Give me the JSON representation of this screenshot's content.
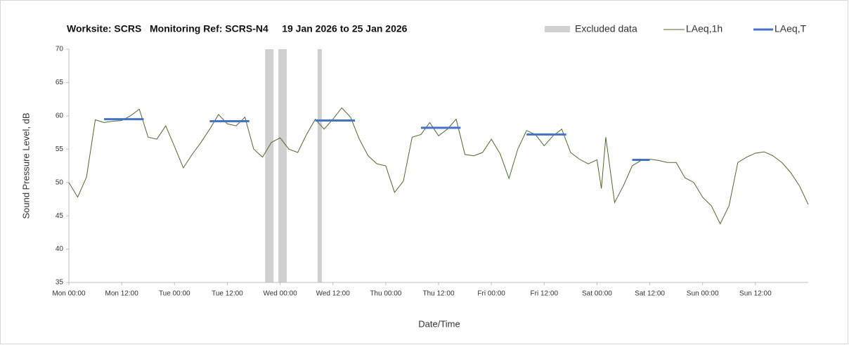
{
  "chart_data": {
    "type": "line",
    "title": "Worksite: SCRS   Monitoring Ref: SCRS-N4     19 Jan 2026 to 25 Jan 2026",
    "xlabel": "Date/Time",
    "ylabel": "Sound Pressure Level, dB",
    "xlim": [
      0,
      168
    ],
    "xticks": [
      {
        "value": 0,
        "label": "Mon 00:00"
      },
      {
        "value": 12,
        "label": "Mon 12:00"
      },
      {
        "value": 24,
        "label": "Tue 00:00"
      },
      {
        "value": 36,
        "label": "Tue 12:00"
      },
      {
        "value": 48,
        "label": "Wed 00:00"
      },
      {
        "value": 60,
        "label": "Wed 12:00"
      },
      {
        "value": 72,
        "label": "Thu 00:00"
      },
      {
        "value": 84,
        "label": "Thu 12:00"
      },
      {
        "value": 96,
        "label": "Fri 00:00"
      },
      {
        "value": 108,
        "label": "Fri 12:00"
      },
      {
        "value": 120,
        "label": "Sat 00:00"
      },
      {
        "value": 132,
        "label": "Sat 12:00"
      },
      {
        "value": 144,
        "label": "Sun 00:00"
      },
      {
        "value": 156,
        "label": "Sun 12:00"
      }
    ],
    "ylim": [
      35,
      70
    ],
    "yticks": [
      35,
      40,
      45,
      50,
      55,
      60,
      65,
      70
    ],
    "excluded": {
      "name": "Excluded data",
      "color": "#d0d0d0",
      "ranges": [
        [
          44.6,
          46.5
        ],
        [
          47.6,
          49.5
        ],
        [
          56.5,
          57.5
        ]
      ]
    },
    "series": [
      {
        "name": "LAeq,1h",
        "color": "#4a6b2a",
        "x": [
          0,
          2,
          4,
          6,
          8,
          10,
          12,
          14,
          16,
          18,
          20,
          22,
          24,
          26,
          28,
          30,
          32,
          34,
          36,
          38,
          40,
          42,
          44,
          46,
          48,
          50,
          52,
          54,
          56,
          58,
          60,
          62,
          64,
          66,
          68,
          70,
          72,
          74,
          76,
          78,
          80,
          82,
          84,
          86,
          88,
          90,
          92,
          94,
          96,
          98,
          100,
          102,
          104,
          106,
          108,
          110,
          112,
          114,
          116,
          118,
          120,
          121,
          122,
          124,
          126,
          128,
          130,
          132,
          134,
          136,
          138,
          140,
          142,
          144,
          146,
          148,
          150,
          152,
          154,
          156,
          158,
          160,
          162,
          164,
          166,
          168
        ],
        "values": [
          50.0,
          47.8,
          50.8,
          59.4,
          59.0,
          59.2,
          59.3,
          60.0,
          61.0,
          56.8,
          56.5,
          58.5,
          55.4,
          52.2,
          54.2,
          56.0,
          58.0,
          60.2,
          58.8,
          58.5,
          59.8,
          55.0,
          53.8,
          56.0,
          56.7,
          55.0,
          54.5,
          57.2,
          59.5,
          58.0,
          59.5,
          61.2,
          59.8,
          56.5,
          54.0,
          52.8,
          52.5,
          48.5,
          50.2,
          56.8,
          57.2,
          59.0,
          57.0,
          58.0,
          59.5,
          54.2,
          54.0,
          54.5,
          56.5,
          54.3,
          50.6,
          55.0,
          57.8,
          57.2,
          55.5,
          57.0,
          58.0,
          54.5,
          53.5,
          52.8,
          53.4,
          49.1,
          56.8,
          47.0,
          49.5,
          52.5,
          53.3,
          53.5,
          53.3,
          53.0,
          53.0,
          50.7,
          50.0,
          47.8,
          46.5,
          43.8,
          46.5,
          53.0,
          53.8,
          54.4,
          54.6,
          54.0,
          53.0,
          51.5,
          49.5,
          46.7
        ]
      },
      {
        "name": "LAeq,T",
        "color": "#4472c4",
        "x_start": [
          8,
          32,
          56,
          80,
          104,
          128
        ],
        "x_end": [
          17,
          41,
          65,
          89,
          113,
          132
        ],
        "values": [
          59.5,
          59.2,
          59.3,
          58.2,
          57.2,
          53.4
        ]
      }
    ]
  }
}
